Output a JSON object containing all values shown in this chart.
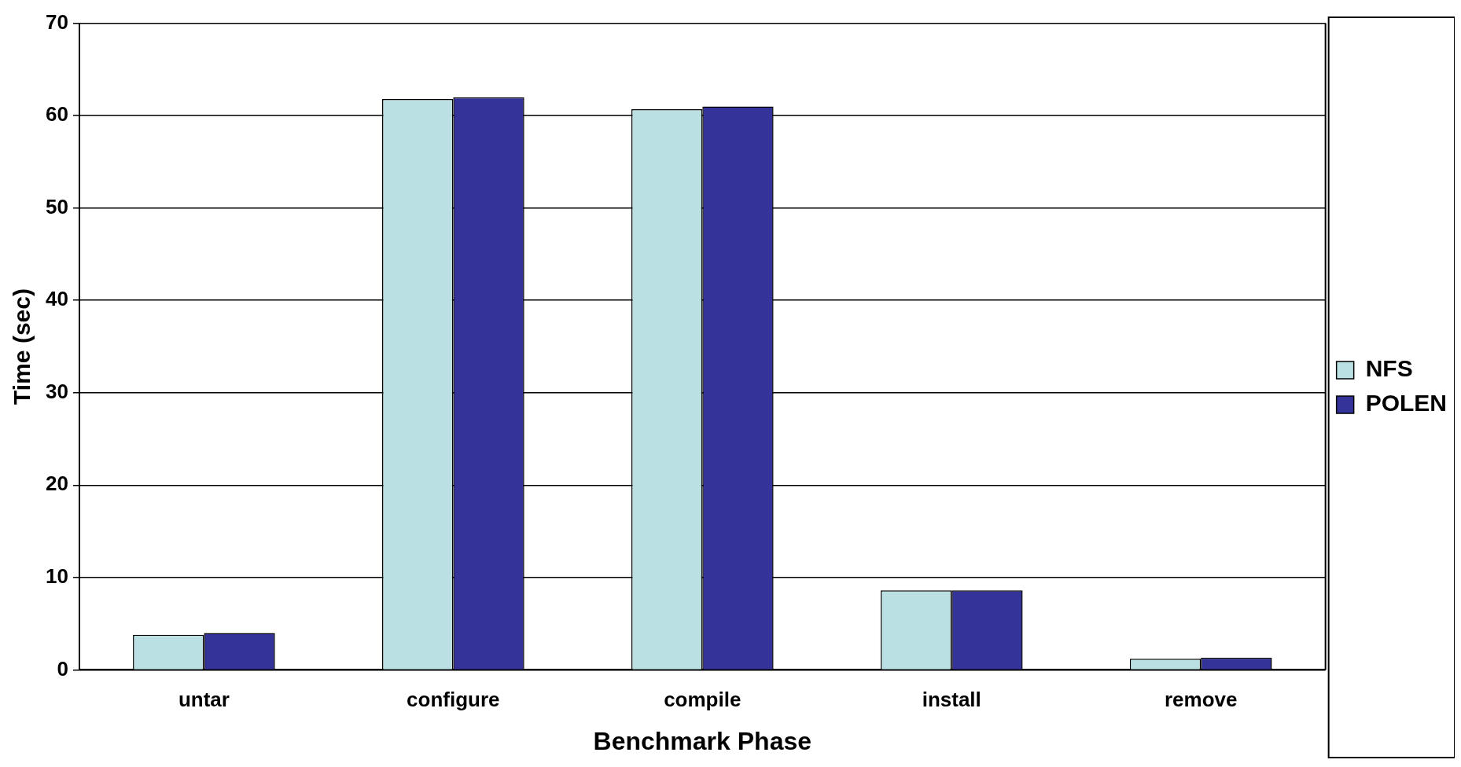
{
  "chart_data": {
    "type": "bar",
    "xlabel": "Benchmark Phase",
    "ylabel": "Time (sec)",
    "categories": [
      "untar",
      "configure",
      "compile",
      "install",
      "remove"
    ],
    "series": [
      {
        "name": "NFS",
        "color": "#bbe0e3",
        "values": [
          3.8,
          61.8,
          60.7,
          8.6,
          1.2
        ]
      },
      {
        "name": "POLEN",
        "color": "#333399",
        "values": [
          4.0,
          62.0,
          61.0,
          8.6,
          1.3
        ]
      }
    ],
    "ylim": [
      0,
      70
    ],
    "yticks": [
      0,
      10,
      20,
      30,
      40,
      50,
      60,
      70
    ],
    "grid": "y",
    "legend": "right"
  }
}
